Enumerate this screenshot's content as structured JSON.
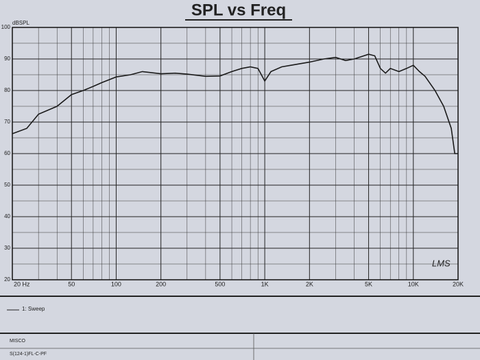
{
  "chart_data": {
    "type": "line",
    "title": "SPL vs Freq",
    "y_label": "dBSPL",
    "x_scale": "log",
    "x": [
      20,
      25,
      30,
      40,
      50,
      60,
      70,
      80,
      100,
      125,
      150,
      200,
      250,
      300,
      400,
      500,
      600,
      700,
      800,
      900,
      1000,
      1100,
      1300,
      1500,
      2000,
      2500,
      3000,
      3500,
      4000,
      5000,
      5500,
      6000,
      6500,
      7000,
      8000,
      9000,
      10000,
      11000,
      12000,
      14000,
      16000,
      18000,
      19000,
      20000
    ],
    "series": [
      {
        "name": "1: Sweep",
        "color": "#1a1a1a",
        "values": [
          66.3,
          68,
          72.5,
          75,
          78.7,
          80,
          81.3,
          82.5,
          84.3,
          85,
          86,
          85.3,
          85.5,
          85.2,
          84.5,
          84.6,
          86,
          87,
          87.5,
          87,
          83,
          86,
          87.5,
          88,
          89,
          90,
          90.5,
          89.5,
          90,
          91.5,
          91,
          87,
          85.5,
          87,
          86,
          87,
          88,
          86,
          84.5,
          80,
          75,
          68,
          60,
          60
        ]
      }
    ],
    "xlim": [
      20,
      20000
    ],
    "ylim": [
      20,
      100
    ],
    "xticks": [
      {
        "value": 20,
        "label": "20 Hz"
      },
      50,
      100,
      200,
      500,
      {
        "value": 1000,
        "label": "1K"
      },
      {
        "value": 2000,
        "label": "2K"
      },
      {
        "value": 5000,
        "label": "5K"
      },
      {
        "value": 10000,
        "label": "10K"
      },
      {
        "value": 20000,
        "label": "20K"
      }
    ],
    "x_minor_grid": [
      30,
      40,
      60,
      70,
      80,
      90,
      300,
      400,
      600,
      700,
      800,
      900,
      3000,
      4000,
      6000,
      7000,
      8000,
      9000
    ],
    "yticks": [
      20,
      30,
      40,
      50,
      60,
      70,
      80,
      90,
      100
    ],
    "y_minor_grid": [
      25,
      35,
      45,
      55,
      65,
      75,
      85,
      95
    ],
    "grid": true,
    "annotation": "LMS",
    "footer": [
      "MISCO",
      "S(124-1)FL-C-PF"
    ]
  }
}
